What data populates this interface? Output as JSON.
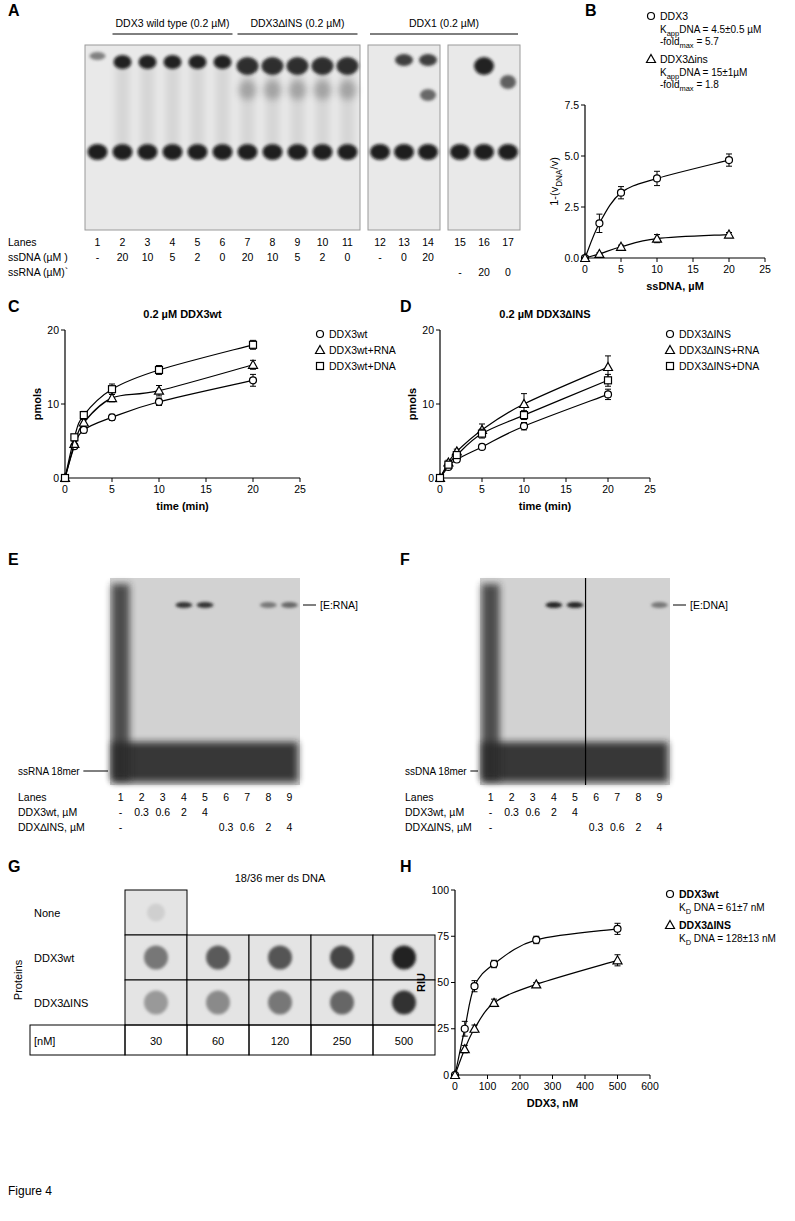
{
  "figure_label": "Figure 4",
  "panel_letters": [
    "A",
    "B",
    "C",
    "D",
    "E",
    "F",
    "G",
    "H"
  ],
  "gels": {
    "A": {
      "groups": [
        "DDX3 wild type (0.2 µM)",
        "DDX3∆INS (0.2 µM)",
        "DDX1 (0.2 µM)"
      ],
      "row_labels": [
        "Lanes",
        "ssDNA (µM )",
        "ssRNA (µM)`"
      ],
      "lanes": [
        "1",
        "2",
        "3",
        "4",
        "5",
        "6",
        "7",
        "8",
        "9",
        "10",
        "11",
        "12",
        "13",
        "14",
        "15",
        "16",
        "17"
      ],
      "ssDNA": [
        "-",
        "20",
        "10",
        "5",
        "2",
        "0",
        "20",
        "10",
        "5",
        "2",
        "0",
        "-",
        "0",
        "20",
        null,
        null,
        null
      ],
      "ssRNA": [
        null,
        null,
        null,
        null,
        null,
        null,
        null,
        null,
        null,
        null,
        null,
        null,
        null,
        null,
        "-",
        "20",
        "0"
      ]
    },
    "E": {
      "band_label": "[E:RNA]",
      "probe_label": "ssRNA 18mer",
      "row_labels": [
        "Lanes",
        "DDX3wt, µM",
        "DDX∆INS, µM"
      ],
      "lanes": [
        "1",
        "2",
        "3",
        "4",
        "5",
        "6",
        "7",
        "8",
        "9"
      ],
      "wt": [
        "-",
        "0.3",
        "0.6",
        "2",
        "4",
        null,
        null,
        null,
        null
      ],
      "ins": [
        "-",
        null,
        null,
        null,
        null,
        "0.3",
        "0.6",
        "2",
        "4"
      ]
    },
    "F": {
      "band_label": "[E:DNA]",
      "probe_label": "ssDNA 18mer",
      "row_labels": [
        "Lanes",
        "DDX3wt, µM",
        "DDX∆INS, µM"
      ],
      "lanes": [
        "1",
        "2",
        "3",
        "4",
        "5",
        "6",
        "7",
        "8",
        "9"
      ],
      "wt": [
        "-",
        "0.3",
        "0.6",
        "2",
        "4",
        null,
        null,
        null,
        null
      ],
      "ins": [
        "-",
        null,
        null,
        null,
        null,
        "0.3",
        "0.6",
        "2",
        "4"
      ]
    },
    "G": {
      "title": "18/36 mer ds DNA",
      "side_label": "Proteins",
      "rows": [
        "None",
        "DDX3wt",
        "DDX3∆INS"
      ],
      "conc_label": "[nM]",
      "conc": [
        "30",
        "60",
        "120",
        "250",
        "500"
      ]
    }
  },
  "chart_data": [
    {
      "type": "line",
      "x_label": "ssDNA, µM",
      "y_label": [
        "1-(v",
        "DNA",
        "/v)"
      ],
      "x": [
        0,
        2,
        5,
        10,
        20
      ],
      "xlim": [
        0,
        25
      ],
      "xticks": [
        0,
        5,
        10,
        15,
        20,
        25
      ],
      "ylim": [
        0,
        7.5
      ],
      "yticks": [
        {
          "value": 0,
          "label": "0.0"
        },
        {
          "value": 2.5,
          "label": "2.5"
        },
        {
          "value": 5,
          "label": "5.0"
        },
        {
          "value": 7.5,
          "label": "7.5"
        }
      ],
      "grid": false,
      "legend": "top",
      "series": [
        {
          "name": "DDX3",
          "color": "#000000",
          "marker": "circle",
          "line_style": "solid",
          "values": [
            0,
            1.7,
            3.2,
            3.9,
            4.8
          ],
          "errors": [
            0,
            0.45,
            0.3,
            0.35,
            0.3
          ],
          "annotations": [
            [
              "K",
              "app",
              "DNA = 4.5±0.5 µM"
            ],
            [
              "-fold",
              "max",
              " = 5.7"
            ]
          ]
        },
        {
          "name": "DDX3∆ins",
          "color": "#000000",
          "marker": "triangle",
          "line_style": "solid",
          "values": [
            0,
            0.2,
            0.55,
            0.95,
            1.15
          ],
          "errors": [
            0,
            0.05,
            0.08,
            0.2,
            0.1
          ],
          "annotations": [
            [
              "K",
              "app",
              "DNA = 15±1µM"
            ],
            [
              "-fold",
              "max",
              " = 1.8"
            ]
          ]
        }
      ]
    },
    {
      "type": "line",
      "title": "0.2 µM DDX3wt",
      "x_label": "time (min)",
      "y_label": "pmols",
      "x": [
        0,
        1,
        2,
        5,
        10,
        20
      ],
      "xlim": [
        0,
        25
      ],
      "xticks": [
        0,
        5,
        10,
        15,
        20,
        25
      ],
      "ylim": [
        0,
        20
      ],
      "yticks": [
        0,
        10,
        20
      ],
      "grid": false,
      "legend": "right",
      "series": [
        {
          "name": "DDX3wt",
          "color": "#000000",
          "marker": "circle",
          "line_style": "solid",
          "values": [
            0,
            4.3,
            6.5,
            8.2,
            10.3,
            13.2
          ],
          "errors": [
            0,
            0.3,
            0.4,
            0.4,
            0.5,
            0.8
          ]
        },
        {
          "name": "DDX3wt+RNA",
          "color": "#000000",
          "marker": "triangle",
          "line_style": "solid",
          "values": [
            0,
            4.6,
            7.5,
            10.8,
            11.8,
            15.3
          ],
          "errors": [
            0,
            0.3,
            0.4,
            0.5,
            0.7,
            0.6
          ]
        },
        {
          "name": "DDX3wt+DNA",
          "color": "#000000",
          "marker": "square",
          "line_style": "solid",
          "values": [
            0,
            5.5,
            8.5,
            12.0,
            14.6,
            18.0
          ],
          "errors": [
            0,
            0.3,
            0.5,
            0.7,
            0.6,
            0.6
          ]
        }
      ]
    },
    {
      "type": "line",
      "title": "0.2 µM DDX3∆INS",
      "x_label": "time (min)",
      "y_label": "pmols",
      "x": [
        0,
        1,
        2,
        5,
        10,
        20
      ],
      "xlim": [
        0,
        25
      ],
      "xticks": [
        0,
        5,
        10,
        15,
        20,
        25
      ],
      "ylim": [
        0,
        20
      ],
      "yticks": [
        0,
        10,
        20
      ],
      "grid": false,
      "legend": "right",
      "series": [
        {
          "name": "DDX3∆INS",
          "color": "#000000",
          "marker": "circle",
          "line_style": "solid",
          "values": [
            0,
            1.5,
            2.5,
            4.2,
            7.0,
            11.3
          ],
          "errors": [
            0,
            0.2,
            0.3,
            0.3,
            0.5,
            0.7
          ]
        },
        {
          "name": "DDX3∆INS+RNA",
          "color": "#000000",
          "marker": "triangle",
          "line_style": "solid",
          "values": [
            0,
            2.1,
            3.6,
            6.5,
            10.0,
            15.0
          ],
          "errors": [
            0,
            0.3,
            0.3,
            0.8,
            1.4,
            1.5
          ]
        },
        {
          "name": "DDX3∆INS+DNA",
          "color": "#000000",
          "marker": "square",
          "line_style": "solid",
          "values": [
            0,
            1.8,
            3.1,
            6.0,
            8.5,
            13.2
          ],
          "errors": [
            0,
            0.2,
            0.3,
            0.6,
            0.6,
            0.8
          ]
        }
      ]
    },
    {
      "type": "line",
      "x_label": "DDX3, nM",
      "y_label": "RIU",
      "x": [
        0,
        30,
        60,
        120,
        250,
        500
      ],
      "xlim": [
        0,
        600
      ],
      "xticks": [
        0,
        100,
        200,
        300,
        400,
        500,
        600
      ],
      "ylim": [
        0,
        100
      ],
      "yticks": [
        0,
        25,
        50,
        75,
        100
      ],
      "grid": false,
      "legend": "right",
      "series": [
        {
          "name": "DDX3wt",
          "color": "#000000",
          "marker": "circle",
          "line_style": "solid",
          "values": [
            0,
            25,
            48,
            60,
            73,
            79
          ],
          "errors": [
            0,
            4,
            3,
            2,
            2,
            3
          ],
          "annotations": [
            [
              "K",
              "D",
              " DNA = 61±7 nM"
            ]
          ]
        },
        {
          "name": "DDX3∆INS",
          "color": "#000000",
          "marker": "triangle",
          "line_style": "solid",
          "values": [
            0,
            14,
            25,
            39,
            49,
            62
          ],
          "errors": [
            0,
            2,
            2,
            2,
            1,
            3
          ],
          "annotations": [
            [
              "K",
              "D",
              " DNA = 128±13 nM"
            ]
          ]
        }
      ]
    }
  ]
}
